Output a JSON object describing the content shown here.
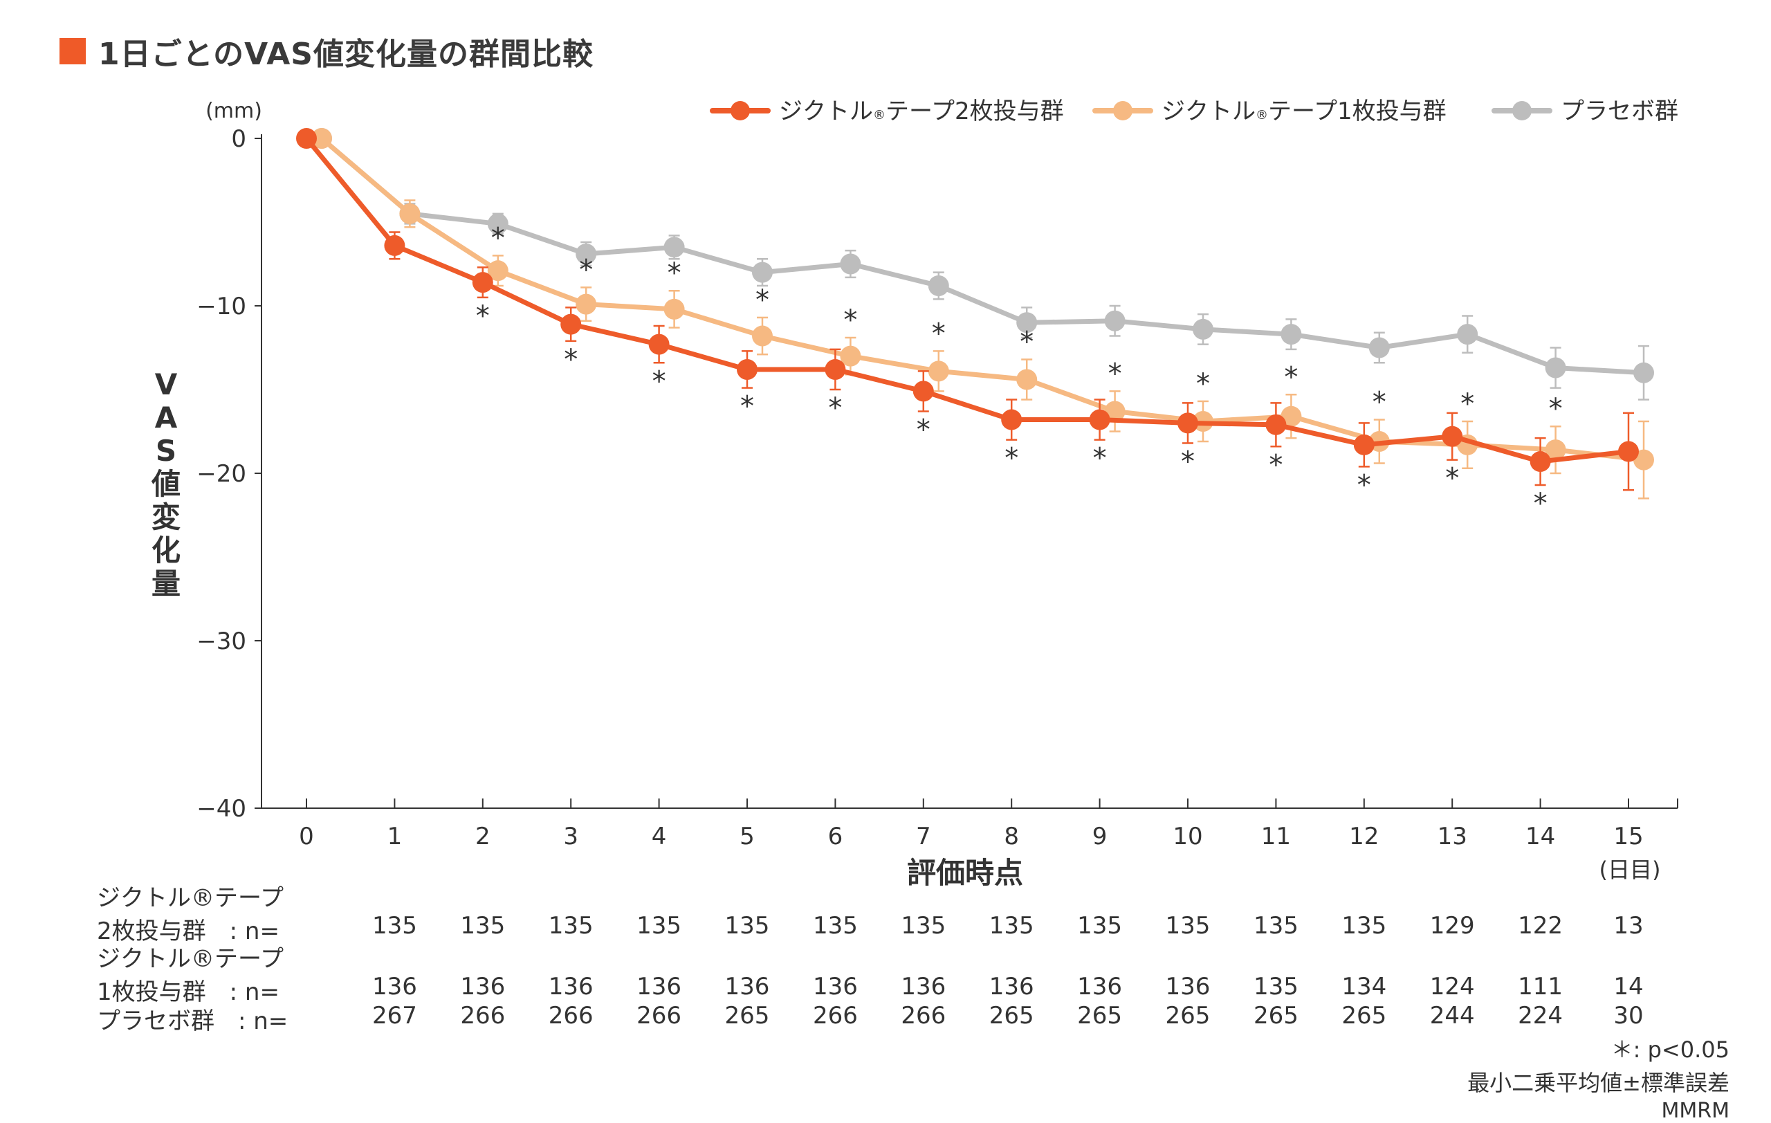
{
  "title": "1日ごとのVAS値変化量の群間比較",
  "colors": {
    "accent": "#ef5a28",
    "group2": "#ee5b2a",
    "group1": "#f6b982",
    "placebo": "#bdbdbd",
    "axis": "#333333"
  },
  "legend": [
    {
      "label_main": "ジクトル",
      "label_reg": "®",
      "label_rest": "テープ2枚投与群",
      "color": "#ee5b2a"
    },
    {
      "label_main": "ジクトル",
      "label_reg": "®",
      "label_rest": "テープ1枚投与群",
      "color": "#f6b982"
    },
    {
      "label_main": "プラセボ群",
      "label_reg": "",
      "label_rest": "",
      "color": "#bdbdbd"
    }
  ],
  "chart_data": {
    "type": "line",
    "title": "1日ごとのVAS値変化量の群間比較",
    "xlabel": "評価時点",
    "x_unit": "(日目)",
    "ylabel": "VAS値変化量",
    "y_unit": "(mm)",
    "ylim": [
      -40,
      0
    ],
    "yticks": [
      0,
      -10,
      -20,
      -30,
      -40
    ],
    "ytick_labels": [
      "0",
      "−10",
      "−20",
      "−30",
      "−40"
    ],
    "x": [
      0,
      1,
      2,
      3,
      4,
      5,
      6,
      7,
      8,
      9,
      10,
      11,
      12,
      13,
      14,
      15
    ],
    "series": [
      {
        "name": "ジクトル®テープ2枚投与群",
        "values": [
          0,
          -6.4,
          -8.6,
          -11.1,
          -12.3,
          -13.8,
          -13.8,
          -15.1,
          -16.8,
          -16.8,
          -17.0,
          -17.1,
          -18.3,
          -17.8,
          -19.3,
          -18.7
        ],
        "errors": [
          0,
          0.8,
          0.9,
          1.0,
          1.1,
          1.1,
          1.2,
          1.2,
          1.2,
          1.2,
          1.2,
          1.3,
          1.3,
          1.4,
          1.4,
          2.3
        ],
        "significant": [
          false,
          false,
          true,
          true,
          true,
          true,
          true,
          true,
          true,
          true,
          true,
          true,
          true,
          true,
          true,
          false
        ],
        "color": "#ee5b2a"
      },
      {
        "name": "ジクトル®テープ1枚投与群",
        "values": [
          0,
          -4.5,
          -7.9,
          -9.9,
          -10.2,
          -11.8,
          -13.0,
          -13.9,
          -14.4,
          -16.3,
          -16.9,
          -16.6,
          -18.1,
          -18.3,
          -18.6,
          -19.2
        ],
        "errors": [
          0,
          0.8,
          0.9,
          1.0,
          1.1,
          1.1,
          1.1,
          1.2,
          1.2,
          1.2,
          1.2,
          1.3,
          1.3,
          1.4,
          1.4,
          2.3
        ],
        "significant": [
          false,
          false,
          true,
          true,
          true,
          true,
          true,
          true,
          true,
          true,
          true,
          true,
          true,
          true,
          true,
          false
        ],
        "color": "#f6b982"
      },
      {
        "name": "プラセボ群",
        "values": [
          0,
          -4.5,
          -5.1,
          -6.9,
          -6.5,
          -8.0,
          -7.5,
          -8.8,
          -11.0,
          -10.9,
          -11.4,
          -11.7,
          -12.5,
          -11.7,
          -13.7,
          -14.0
        ],
        "errors": [
          0,
          0.6,
          0.6,
          0.7,
          0.7,
          0.8,
          0.8,
          0.8,
          0.9,
          0.9,
          0.9,
          0.9,
          0.9,
          1.1,
          1.2,
          1.6
        ],
        "significant": [
          false,
          false,
          false,
          false,
          false,
          false,
          false,
          false,
          false,
          false,
          false,
          false,
          false,
          false,
          false,
          false
        ],
        "color": "#bdbdbd"
      }
    ]
  },
  "table": {
    "rows": [
      {
        "label_l1": "ジクトル®テープ",
        "label_l2": "2枚投与群　: n=",
        "values": [
          "",
          "135",
          "135",
          "135",
          "135",
          "135",
          "135",
          "135",
          "135",
          "135",
          "135",
          "135",
          "135",
          "129",
          "122",
          "13"
        ]
      },
      {
        "label_l1": "ジクトル®テープ",
        "label_l2": "1枚投与群　: n=",
        "values": [
          "",
          "136",
          "136",
          "136",
          "136",
          "136",
          "136",
          "136",
          "136",
          "136",
          "136",
          "135",
          "134",
          "124",
          "111",
          "14"
        ]
      },
      {
        "label_l1": "",
        "label_l2": "プラセボ群　: n=",
        "values": [
          "",
          "267",
          "266",
          "266",
          "266",
          "265",
          "266",
          "266",
          "265",
          "265",
          "265",
          "265",
          "265",
          "244",
          "224",
          "30"
        ]
      }
    ]
  },
  "notes": {
    "sig": "＊: p<0.05",
    "stat": "最小二乗平均値±標準誤差",
    "model": "MMRM"
  }
}
